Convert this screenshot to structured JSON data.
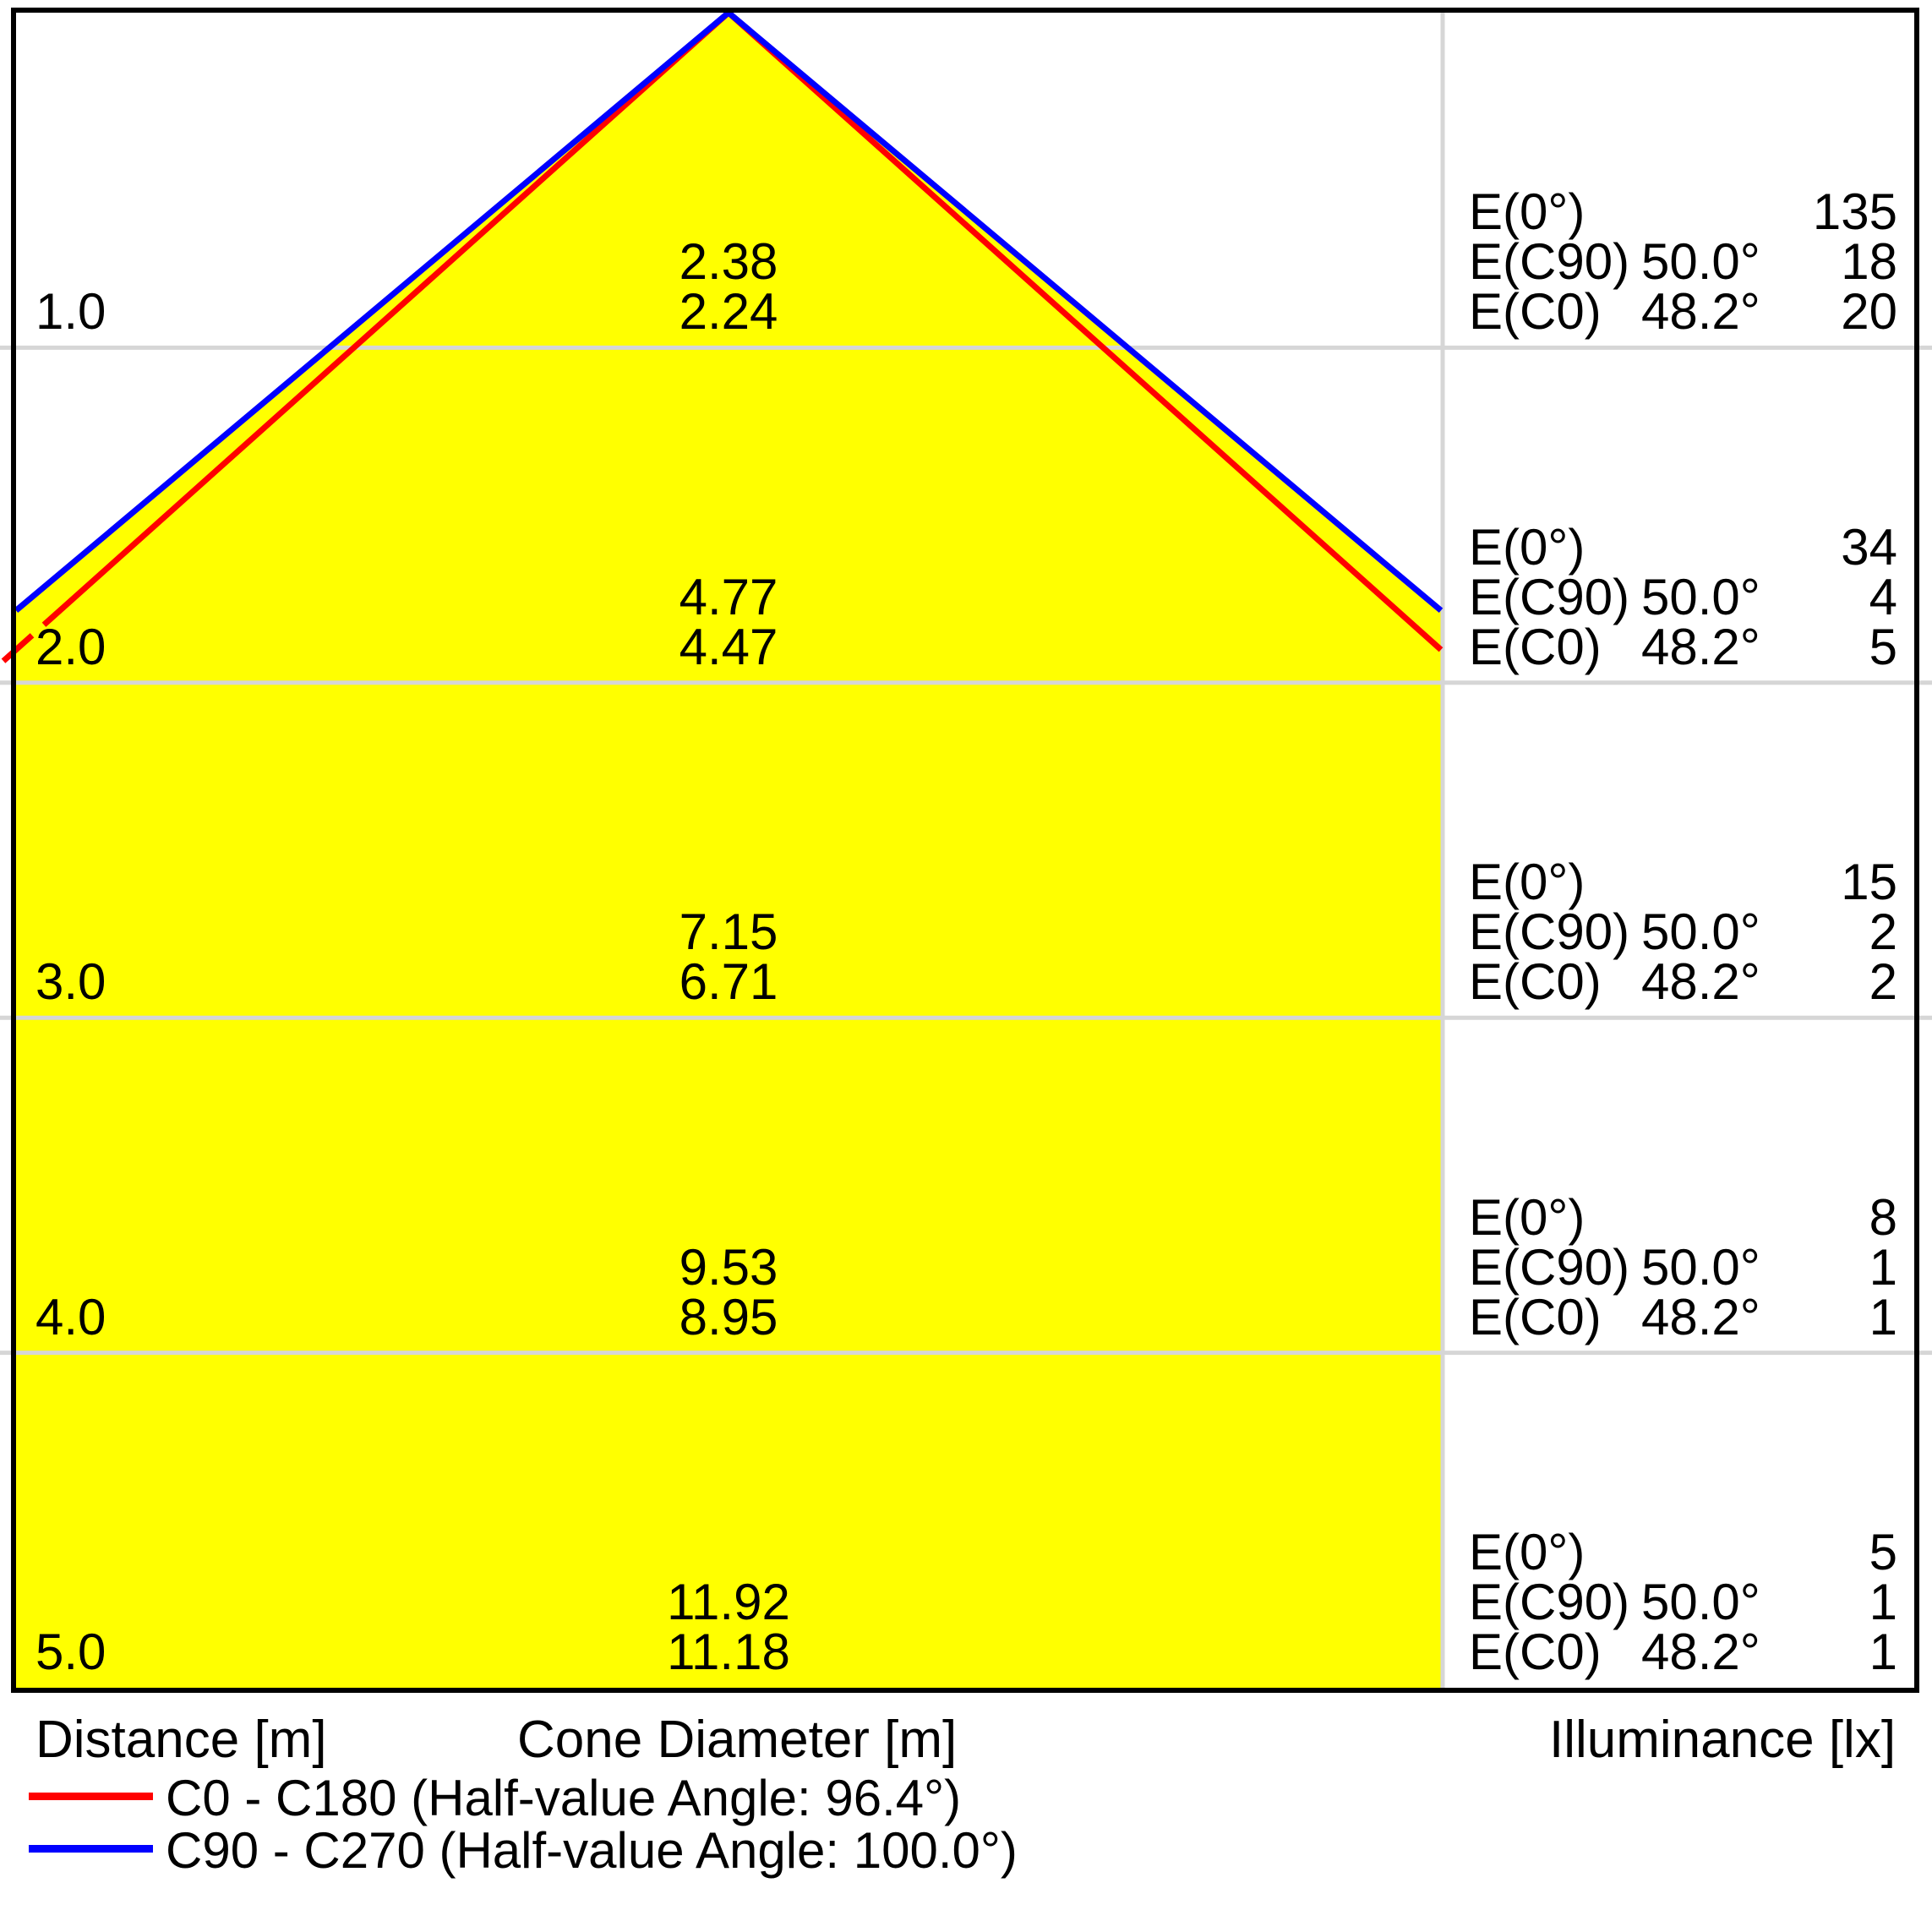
{
  "labels": {
    "e0": "E(0°)",
    "ec90": "E(C90)",
    "ec0": "E(C0)",
    "angle_c90": "50.0°",
    "angle_c0": "48.2°"
  },
  "rows": [
    {
      "distance": "1.0",
      "cone_c90": "2.38",
      "cone_c0": "2.24",
      "e0": "135",
      "ec90": "18",
      "ec0": "20"
    },
    {
      "distance": "2.0",
      "cone_c90": "4.77",
      "cone_c0": "4.47",
      "e0": "34",
      "ec90": "4",
      "ec0": "5"
    },
    {
      "distance": "3.0",
      "cone_c90": "7.15",
      "cone_c0": "6.71",
      "e0": "15",
      "ec90": "2",
      "ec0": "2"
    },
    {
      "distance": "4.0",
      "cone_c90": "9.53",
      "cone_c0": "8.95",
      "e0": "8",
      "ec90": "1",
      "ec0": "1"
    },
    {
      "distance": "5.0",
      "cone_c90": "11.92",
      "cone_c0": "11.18",
      "e0": "5",
      "ec90": "1",
      "ec0": "1"
    }
  ],
  "footer": {
    "distance_axis": "Distance [m]",
    "cone_axis": "Cone Diameter [m]",
    "illuminance_axis": "Illuminance [lx]"
  },
  "legend": [
    {
      "label": "C0 - C180 (Half-value Angle: 96.4°)",
      "color": "#ff0000"
    },
    {
      "label": "C90 - C270 (Half-value Angle: 100.0°)",
      "color": "#0000ff"
    }
  ],
  "chart_data": {
    "type": "area",
    "title": "Photometric light cone diagram",
    "x": [
      1.0,
      2.0,
      3.0,
      4.0,
      5.0
    ],
    "xlabel": "Distance [m]",
    "ylabel_left": "Cone Diameter [m]",
    "ylabel_right": "Illuminance [lx]",
    "ylim_m": [
      0,
      5
    ],
    "grid": true,
    "legend_position": "bottom-left",
    "cone_fill_color": "#ffff00",
    "gridline_color": "#d6d6d6",
    "series": [
      {
        "name": "C0 - C180",
        "half_value_angle_deg": 96.4,
        "eval_angle": "48.2°",
        "cone_diameter_m": [
          2.24,
          4.47,
          6.71,
          8.95,
          11.18
        ],
        "illuminance_lx": [
          20,
          5,
          2,
          1,
          1
        ],
        "color": "#ff0000"
      },
      {
        "name": "C90 - C270",
        "half_value_angle_deg": 100.0,
        "eval_angle": "50.0°",
        "cone_diameter_m": [
          2.38,
          4.77,
          7.15,
          9.53,
          11.92
        ],
        "illuminance_lx": [
          18,
          4,
          2,
          1,
          1
        ],
        "color": "#0000ff"
      }
    ],
    "e0_illuminance_lx": [
      135,
      34,
      15,
      8,
      5
    ]
  }
}
